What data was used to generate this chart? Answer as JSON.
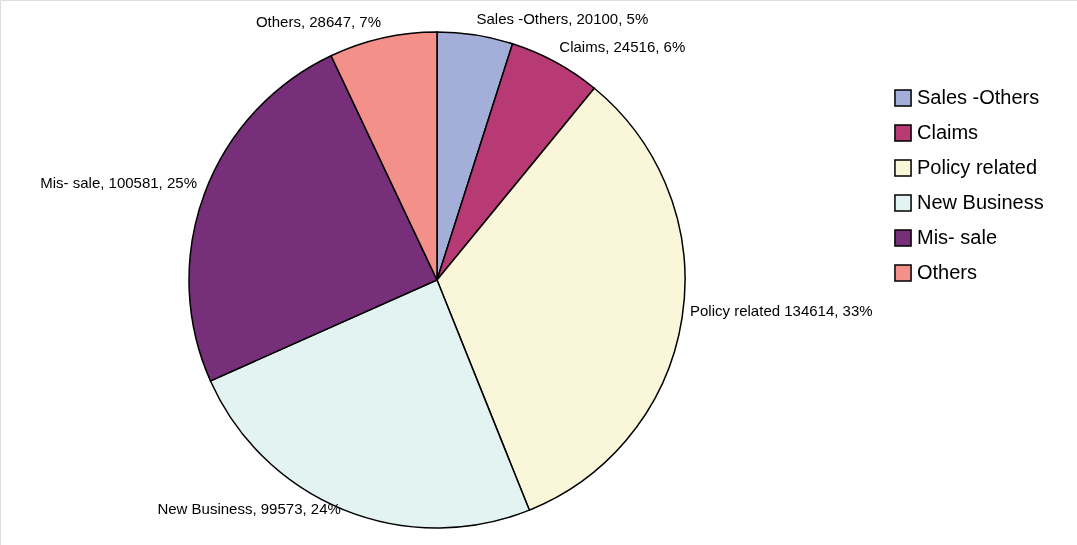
{
  "chart_data": {
    "type": "pie",
    "categories": [
      "Sales -Others",
      "Claims",
      "Policy related",
      "New Business",
      "Mis- sale",
      "Others"
    ],
    "values": [
      20100,
      24516,
      134614,
      99573,
      100581,
      28647
    ],
    "colors": [
      "#a3afd9",
      "#b83a74",
      "#f9f6d9",
      "#e3f3f1",
      "#782f7a",
      "#f4908a"
    ],
    "value_labels": [
      "Sales -Others, 20100, 5%",
      "Claims, 24516, 6%",
      "Policy related 134614, 33%",
      "New Business, 99573, 24%",
      "Mis- sale, 100581, 25%",
      "Others, 28647, 7%"
    ],
    "legend": "right"
  }
}
